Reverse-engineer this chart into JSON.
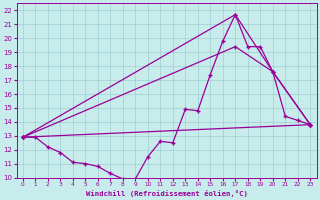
{
  "background_color": "#c8ecec",
  "grid_color": "#9ecece",
  "line_color": "#990099",
  "xlim": [
    -0.5,
    23.5
  ],
  "ylim": [
    10,
    22.5
  ],
  "xticks": [
    0,
    1,
    2,
    3,
    4,
    5,
    6,
    7,
    8,
    9,
    10,
    11,
    12,
    13,
    14,
    15,
    16,
    17,
    18,
    19,
    20,
    21,
    22,
    23
  ],
  "yticks": [
    10,
    11,
    12,
    13,
    14,
    15,
    16,
    17,
    18,
    19,
    20,
    21,
    22
  ],
  "xlabel": "Windchill (Refroidissement éolien,°C)",
  "line_detail": {
    "x": [
      0,
      1,
      2,
      3,
      4,
      5,
      6,
      7,
      8,
      9,
      10,
      11,
      12,
      13,
      14,
      15,
      16,
      17,
      18,
      19,
      20,
      21,
      22,
      23
    ],
    "y": [
      12.9,
      12.9,
      12.2,
      11.8,
      11.1,
      11.0,
      10.8,
      10.3,
      9.9,
      9.9,
      11.5,
      12.6,
      12.5,
      14.9,
      14.8,
      17.4,
      19.8,
      21.7,
      19.4,
      19.4,
      17.6,
      14.4,
      14.1,
      13.8
    ]
  },
  "line_bottom": {
    "x": [
      0,
      23
    ],
    "y": [
      12.9,
      13.8
    ]
  },
  "line_peak_triangle": {
    "x": [
      0,
      17,
      20,
      23
    ],
    "y": [
      12.9,
      21.7,
      17.6,
      13.8
    ]
  },
  "line_mid": {
    "x": [
      0,
      17,
      20,
      23
    ],
    "y": [
      12.9,
      19.4,
      17.6,
      13.8
    ]
  }
}
